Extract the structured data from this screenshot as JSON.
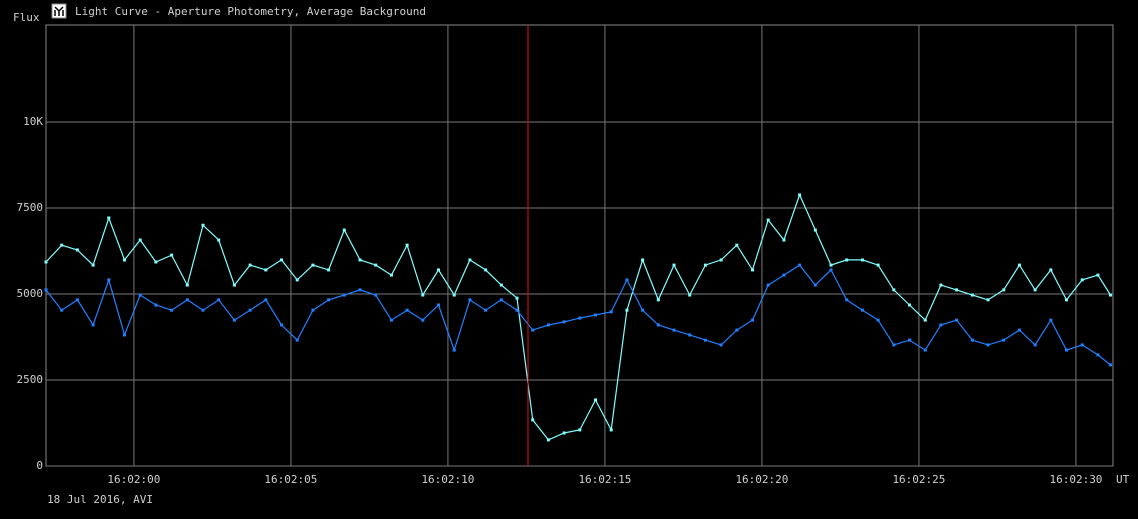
{
  "chart_data": {
    "type": "line",
    "title": "Light Curve - Aperture Photometry, Average Background",
    "y_label": "Flux",
    "x_unit": "UT",
    "footer": "18 Jul 2016, AVI",
    "grid": true,
    "xlim": [
      -2.8,
      31.18
    ],
    "ylim": [
      0,
      12820
    ],
    "xticks": [
      {
        "value": 0,
        "label": "16:02:00"
      },
      {
        "value": 5,
        "label": "16:02:05"
      },
      {
        "value": 10,
        "label": "16:02:10"
      },
      {
        "value": 15,
        "label": "16:02:15"
      },
      {
        "value": 20,
        "label": "16:02:20"
      },
      {
        "value": 25,
        "label": "16:02:25"
      },
      {
        "value": 30,
        "label": "16:02:30"
      }
    ],
    "yticks": [
      0,
      2500,
      5000,
      7500,
      {
        "value": 10000,
        "label": "10K"
      }
    ],
    "x": [
      -2.8,
      -2.3,
      -1.8,
      -1.3,
      -0.8,
      -0.3,
      0.2,
      0.7,
      1.2,
      1.7,
      2.2,
      2.7,
      3.2,
      3.7,
      4.2,
      4.7,
      5.2,
      5.7,
      6.2,
      6.7,
      7.2,
      7.7,
      8.2,
      8.7,
      9.2,
      9.7,
      10.2,
      10.7,
      11.2,
      11.7,
      12.2,
      12.7,
      13.2,
      13.7,
      14.2,
      14.7,
      15.2,
      15.7,
      16.2,
      16.7,
      17.2,
      17.7,
      18.2,
      18.7,
      19.2,
      19.7,
      20.2,
      20.7,
      21.2,
      21.7,
      22.2,
      22.7,
      23.2,
      23.7,
      24.2,
      24.7,
      25.2,
      25.7,
      26.2,
      26.7,
      27.2,
      27.7,
      28.2,
      28.7,
      29.2,
      29.7,
      30.2,
      30.7,
      31.1
    ],
    "series": [
      {
        "color": "#80ffff",
        "values": [
          5930,
          6420,
          6280,
          5840,
          7210,
          5990,
          6570,
          5930,
          6130,
          5260,
          7000,
          6570,
          5260,
          5840,
          5700,
          5990,
          5410,
          5840,
          5700,
          6860,
          5990,
          5840,
          5550,
          6420,
          4970,
          5700,
          4970,
          5990,
          5700,
          5260,
          4880,
          1340,
          760,
          960,
          1050,
          1920,
          1050,
          4530,
          5990,
          4830,
          5840,
          4970,
          5840,
          5990,
          6420,
          5700,
          7150,
          6570,
          7880,
          6860,
          5840,
          5990,
          5990,
          5840,
          5120,
          4680,
          4240,
          5260,
          5120,
          4970,
          4830,
          5120,
          5840,
          5120,
          5700,
          4830,
          5410,
          5550,
          4970
        ]
      },
      {
        "color": "#2080ff",
        "values": [
          5120,
          4530,
          4830,
          4100,
          5410,
          3810,
          4970,
          4680,
          4530,
          4830,
          4530,
          4830,
          4240,
          4530,
          4830,
          4100,
          3660,
          4530,
          4830,
          4970,
          5120,
          4970,
          4240,
          4530,
          4240,
          4680,
          3370,
          4830,
          4530,
          4830,
          4530,
          3950,
          4100,
          4190,
          4300,
          4390,
          4480,
          5410,
          4530,
          4100,
          3950,
          3810,
          3660,
          3520,
          3950,
          4240,
          5260,
          5550,
          5840,
          5260,
          5700,
          4830,
          4530,
          4240,
          3520,
          3660,
          3370,
          4100,
          4240,
          3660,
          3520,
          3660,
          3950,
          3520,
          4240,
          3370,
          3520,
          3230,
          2940
        ]
      }
    ]
  }
}
